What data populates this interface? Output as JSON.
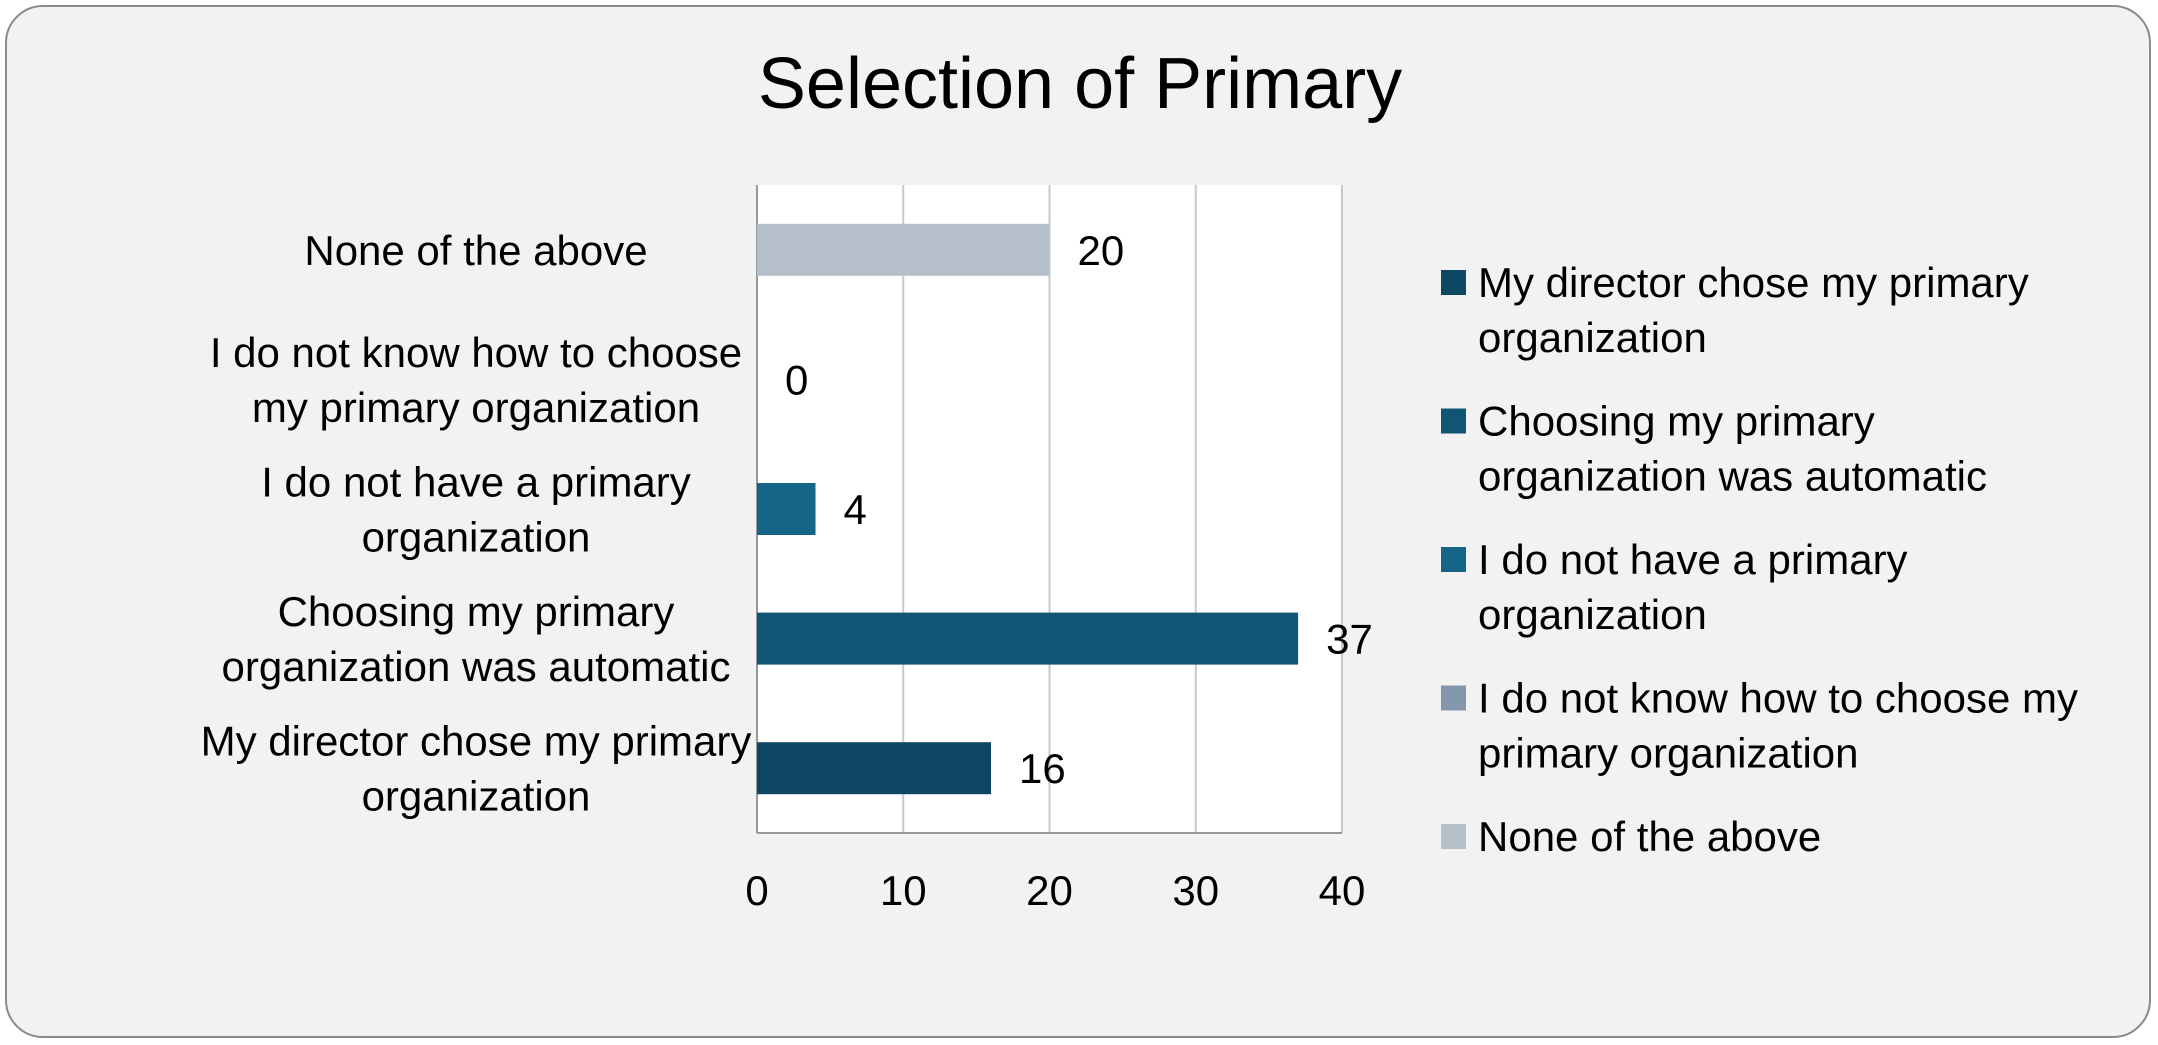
{
  "chart_data": {
    "type": "bar",
    "orientation": "horizontal",
    "title": "Selection of Primary",
    "xlabel": "",
    "ylabel": "",
    "xlim": [
      0,
      40
    ],
    "x_ticks": [
      "0",
      "10",
      "20",
      "30",
      "40"
    ],
    "grid": "vertical gridlines",
    "legend_position": "right",
    "categories": [
      {
        "label_lines": [
          "My director chose my primary",
          "organization"
        ],
        "value": 16,
        "color": "#0e4763",
        "legend_lines": [
          "My director chose my primary",
          "organization"
        ]
      },
      {
        "label_lines": [
          "Choosing my primary",
          "organization was automatic"
        ],
        "value": 37,
        "color": "#105573",
        "legend_lines": [
          "Choosing my primary",
          "organization was automatic"
        ]
      },
      {
        "label_lines": [
          "I do not have a primary",
          "organization"
        ],
        "value": 4,
        "color": "#166488",
        "legend_lines": [
          "I do not have a primary",
          "organization"
        ]
      },
      {
        "label_lines": [
          "I do not know how to choose",
          "my primary organization"
        ],
        "value": 0,
        "color": "#8497aa",
        "legend_lines": [
          "I do not know how to choose my",
          "primary organization"
        ]
      },
      {
        "label_lines": [
          "None of the above"
        ],
        "value": 20,
        "color": "#b5bfc9",
        "legend_lines": [
          "None of the above"
        ]
      }
    ]
  }
}
